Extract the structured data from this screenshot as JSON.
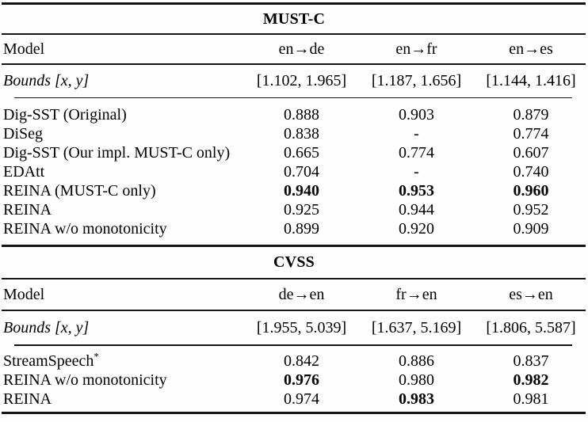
{
  "table": {
    "sections": [
      {
        "title": "MUST-C",
        "model_header": "Model",
        "columns": [
          "en→de",
          "en→fr",
          "en→es"
        ],
        "bounds_label": "Bounds [x, y]",
        "bounds": [
          "[1.102, 1.965]",
          "[1.187, 1.656]",
          "[1.144, 1.416]"
        ],
        "rows": [
          {
            "model": "Dig-SST (Original)",
            "values": [
              "0.888",
              "0.903",
              "0.879"
            ],
            "bold": [
              false,
              false,
              false
            ]
          },
          {
            "model": "DiSeg",
            "values": [
              "0.838",
              "-",
              "0.774"
            ],
            "bold": [
              false,
              false,
              false
            ]
          },
          {
            "model": "Dig-SST (Our impl. MUST-C only)",
            "values": [
              "0.665",
              "0.774",
              "0.607"
            ],
            "bold": [
              false,
              false,
              false
            ]
          },
          {
            "model": "EDAtt",
            "values": [
              "0.704",
              "-",
              "0.740"
            ],
            "bold": [
              false,
              false,
              false
            ]
          },
          {
            "model": "REINA (MUST-C only)",
            "values": [
              "0.940",
              "0.953",
              "0.960"
            ],
            "bold": [
              true,
              true,
              true
            ]
          },
          {
            "model": "REINA",
            "values": [
              "0.925",
              "0.944",
              "0.952"
            ],
            "bold": [
              false,
              false,
              false
            ]
          },
          {
            "model": "REINA w/o monotonicity",
            "values": [
              "0.899",
              "0.920",
              "0.909"
            ],
            "bold": [
              false,
              false,
              false
            ]
          }
        ]
      },
      {
        "title": "CVSS",
        "model_header": "Model",
        "columns": [
          "de→en",
          "fr→en",
          "es→en"
        ],
        "bounds_label": "Bounds [x, y]",
        "bounds": [
          "[1.955, 5.039]",
          "[1.637, 5.169]",
          "[1.806, 5.587]"
        ],
        "rows": [
          {
            "model": "StreamSpeech",
            "model_sup": "*",
            "values": [
              "0.842",
              "0.886",
              "0.837"
            ],
            "bold": [
              false,
              false,
              false
            ]
          },
          {
            "model": "REINA w/o monotonicity",
            "values": [
              "0.976",
              "0.980",
              "0.982"
            ],
            "bold": [
              true,
              false,
              true
            ]
          },
          {
            "model": "REINA",
            "values": [
              "0.974",
              "0.983",
              "0.981"
            ],
            "bold": [
              false,
              true,
              false
            ]
          }
        ]
      }
    ]
  }
}
